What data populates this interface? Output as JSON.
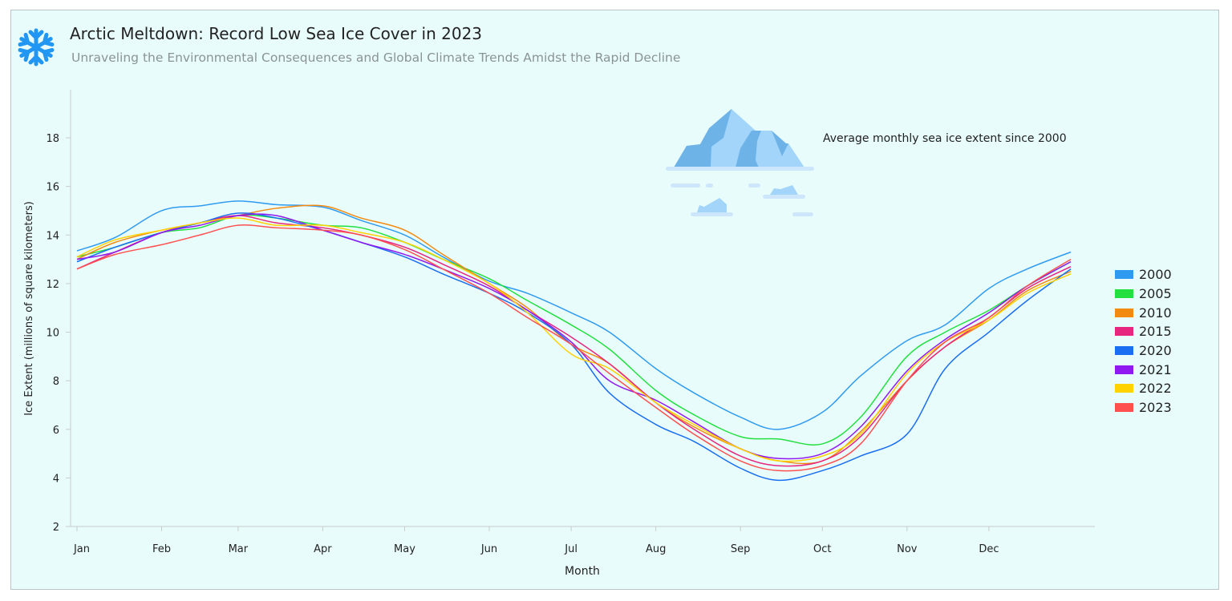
{
  "header": {
    "title": "Arctic Meltdown: Record Low Sea Ice Cover in 2023",
    "subtitle": "Unraveling the Environmental Consequences and Global Climate Trends Amidst the Rapid Decline",
    "icon": "snowflake-icon",
    "icon_color": "#2196f3"
  },
  "annotation": {
    "text": "Average monthly sea ice extent since 2000",
    "icon": "iceberg-icon"
  },
  "chart_data": {
    "type": "line",
    "title": "",
    "xlabel": "Month",
    "ylabel": "Ice Extent (millions of square kilometers)",
    "ylim": [
      2,
      20
    ],
    "yticks": [
      2,
      4,
      6,
      8,
      10,
      12,
      14,
      16,
      18
    ],
    "xtick_labels": [
      "Jan",
      "Feb",
      "Mar",
      "Apr",
      "May",
      "Jun",
      "Jul",
      "Aug",
      "Sep",
      "Oct",
      "Nov",
      "Dec"
    ],
    "grid": false,
    "legend_position": "right",
    "x": [
      "01-01",
      "01-15",
      "02-01",
      "02-15",
      "03-01",
      "03-15",
      "04-01",
      "04-15",
      "05-01",
      "05-15",
      "06-01",
      "06-15",
      "07-01",
      "07-15",
      "08-01",
      "08-15",
      "09-01",
      "09-15",
      "10-01",
      "10-15",
      "11-01",
      "11-15",
      "12-01",
      "12-15",
      "12-31"
    ],
    "series": [
      {
        "name": "2000",
        "color": "#2f9bf0",
        "values": [
          13.35,
          13.9,
          15.0,
          15.2,
          15.4,
          15.25,
          15.15,
          14.6,
          14.0,
          13.1,
          12.1,
          11.6,
          10.8,
          10.0,
          8.5,
          7.5,
          6.5,
          6.0,
          6.7,
          8.2,
          9.65,
          10.3,
          11.8,
          12.6,
          13.3
        ]
      },
      {
        "name": "2005",
        "color": "#22e040",
        "values": [
          13.1,
          13.5,
          14.1,
          14.3,
          14.8,
          14.7,
          14.4,
          14.3,
          13.7,
          13.0,
          12.2,
          11.3,
          10.3,
          9.3,
          7.6,
          6.6,
          5.7,
          5.6,
          5.4,
          6.5,
          9.0,
          10.0,
          10.9,
          11.9,
          12.9
        ]
      },
      {
        "name": "2010",
        "color": "#f28a10",
        "values": [
          13.0,
          13.7,
          14.2,
          14.5,
          14.8,
          15.1,
          15.2,
          14.7,
          14.2,
          13.2,
          12.0,
          11.0,
          9.5,
          8.7,
          7.1,
          6.1,
          5.2,
          4.7,
          4.7,
          5.9,
          8.0,
          9.4,
          10.5,
          11.7,
          12.5
        ]
      },
      {
        "name": "2015",
        "color": "#e6267f",
        "values": [
          12.6,
          13.3,
          14.1,
          14.5,
          14.8,
          14.5,
          14.3,
          14.0,
          13.5,
          12.8,
          11.9,
          10.9,
          9.8,
          8.7,
          7.1,
          6.0,
          4.9,
          4.5,
          4.7,
          5.7,
          8.0,
          9.4,
          10.6,
          11.8,
          12.7
        ]
      },
      {
        "name": "2020",
        "color": "#1a6ef2",
        "values": [
          12.9,
          13.5,
          14.1,
          14.5,
          14.9,
          14.7,
          14.2,
          13.7,
          13.1,
          12.4,
          11.6,
          10.8,
          9.5,
          7.5,
          6.2,
          5.5,
          4.4,
          3.9,
          4.3,
          4.9,
          5.8,
          8.5,
          10.0,
          11.3,
          12.6
        ]
      },
      {
        "name": "2021",
        "color": "#9018f0",
        "values": [
          13.0,
          13.3,
          14.1,
          14.4,
          14.8,
          14.8,
          14.2,
          13.7,
          13.2,
          12.6,
          11.8,
          10.9,
          9.6,
          8.0,
          7.2,
          6.3,
          5.2,
          4.8,
          5.0,
          6.1,
          8.4,
          9.7,
          10.8,
          11.9,
          12.9
        ]
      },
      {
        "name": "2022",
        "color": "#ffd200",
        "values": [
          13.1,
          13.8,
          14.2,
          14.5,
          14.7,
          14.4,
          14.4,
          14.1,
          13.7,
          13.0,
          12.0,
          10.8,
          9.1,
          8.5,
          7.1,
          6.2,
          5.2,
          4.7,
          4.9,
          5.8,
          8.3,
          9.6,
          10.5,
          11.6,
          12.4
        ]
      },
      {
        "name": "2023",
        "color": "#ff5050",
        "values": [
          12.6,
          13.2,
          13.6,
          14.0,
          14.4,
          14.3,
          14.2,
          14.0,
          13.4,
          12.6,
          11.6,
          10.6,
          9.5,
          8.3,
          6.9,
          5.8,
          4.7,
          4.3,
          4.5,
          5.4,
          8.0,
          9.6,
          10.6,
          11.9,
          13.0
        ]
      }
    ]
  }
}
